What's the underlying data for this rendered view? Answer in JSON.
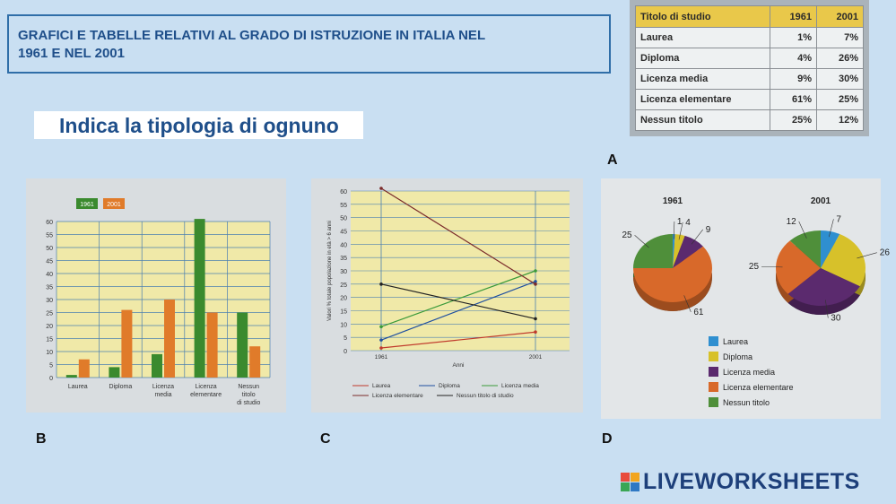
{
  "header": {
    "line1": "GRAFICI E TABELLE RELATIVI AL GRADO DI ISTRUZIONE IN ITALIA NEL",
    "line2": "1961 E NEL 2001"
  },
  "subtitle": "Indica la tipologia di ognuno",
  "letters": {
    "a": "A",
    "b": "B",
    "c": "C",
    "d": "D"
  },
  "table": {
    "headers": [
      "Titolo di studio",
      "1961",
      "2001"
    ],
    "rows": [
      [
        "Laurea",
        "1%",
        "7%"
      ],
      [
        "Diploma",
        "4%",
        "26%"
      ],
      [
        "Licenza media",
        "9%",
        "30%"
      ],
      [
        "Licenza elementare",
        "61%",
        "25%"
      ],
      [
        "Nessun titolo",
        "25%",
        "12%"
      ]
    ]
  },
  "logo": "LIVEWORKSHEETS",
  "colors": {
    "bar1961": "#3a8a2e",
    "bar2001": "#e07b2a",
    "laurea": "#2f8fd0",
    "diploma": "#d7c12a",
    "media": "#5b2a6e",
    "elementare": "#d8692a",
    "nessun": "#4f8f3a"
  },
  "chart_data": [
    {
      "type": "bar",
      "legend": [
        "1961",
        "2001"
      ],
      "categories": [
        "Laurea",
        "Diploma",
        "Licenza media",
        "Licenza elementare",
        "Nessun titolo di studio"
      ],
      "series": [
        {
          "name": "1961",
          "values": [
            1,
            4,
            9,
            61,
            25
          ]
        },
        {
          "name": "2001",
          "values": [
            7,
            26,
            30,
            25,
            12
          ]
        }
      ],
      "yticks": [
        "0",
        "5",
        "10",
        "15",
        "20",
        "25",
        "30",
        "35",
        "40",
        "45",
        "50",
        "55",
        "60"
      ],
      "ylim": [
        0,
        60
      ]
    },
    {
      "type": "line",
      "x": [
        "1961",
        "2001"
      ],
      "xlabel": "Anni",
      "ylabel": "Valori % totale popolazione in età > 6 anni",
      "yticks": [
        "0",
        "5",
        "10",
        "15",
        "20",
        "25",
        "30",
        "35",
        "40",
        "45",
        "50",
        "55",
        "60"
      ],
      "ylim": [
        0,
        60
      ],
      "series": [
        {
          "name": "Laurea",
          "values": [
            1,
            7
          ],
          "color": "#c0392b"
        },
        {
          "name": "Diploma",
          "values": [
            4,
            26
          ],
          "color": "#1f4fa0"
        },
        {
          "name": "Licenza media",
          "values": [
            9,
            30
          ],
          "color": "#3a9a3a"
        },
        {
          "name": "Licenza elementare",
          "values": [
            61,
            25
          ],
          "color": "#7a2a2a"
        },
        {
          "name": "Nessun titolo di studio",
          "values": [
            25,
            12
          ],
          "color": "#222222"
        }
      ]
    },
    {
      "type": "pie",
      "titles": [
        "1961",
        "2001"
      ],
      "labels": [
        "Laurea",
        "Diploma",
        "Licenza media",
        "Licenza elementare",
        "Nessun titolo"
      ],
      "pies": [
        {
          "title": "1961",
          "values": [
            1,
            4,
            9,
            61,
            25
          ]
        },
        {
          "title": "2001",
          "values": [
            7,
            26,
            30,
            25,
            12
          ]
        }
      ]
    }
  ]
}
